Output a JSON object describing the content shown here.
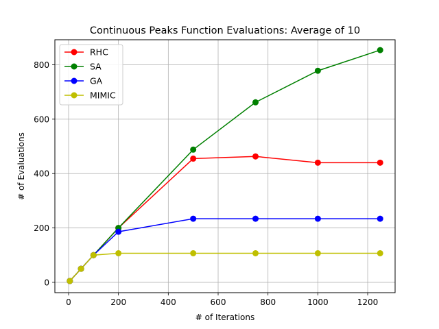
{
  "chart_data": {
    "type": "line",
    "title": "Continuous Peaks Function Evaluations: Average of 10",
    "xlabel": "# of Iterations",
    "ylabel": "# of Evaluations",
    "x": [
      5,
      50,
      100,
      200,
      500,
      750,
      1000,
      1250
    ],
    "xlim": [
      -55,
      1310
    ],
    "ylim": [
      -38,
      892
    ],
    "xticks": [
      0,
      200,
      400,
      600,
      800,
      1000,
      1200
    ],
    "yticks": [
      0,
      200,
      400,
      600,
      800
    ],
    "grid": true,
    "legend_position": "top-left",
    "marker": "circle",
    "series": [
      {
        "name": "RHC",
        "color": "#ff0000",
        "values": [
          5,
          50,
          100,
          200,
          455,
          463,
          440,
          440
        ]
      },
      {
        "name": "SA",
        "color": "#008000",
        "values": [
          5,
          50,
          100,
          200,
          488,
          662,
          778,
          854
        ]
      },
      {
        "name": "GA",
        "color": "#0000ff",
        "values": [
          5,
          50,
          100,
          186,
          234,
          234,
          234,
          234
        ]
      },
      {
        "name": "MIMIC",
        "color": "#bfbf00",
        "values": [
          5,
          50,
          100,
          107,
          107,
          107,
          107,
          107
        ]
      }
    ]
  }
}
